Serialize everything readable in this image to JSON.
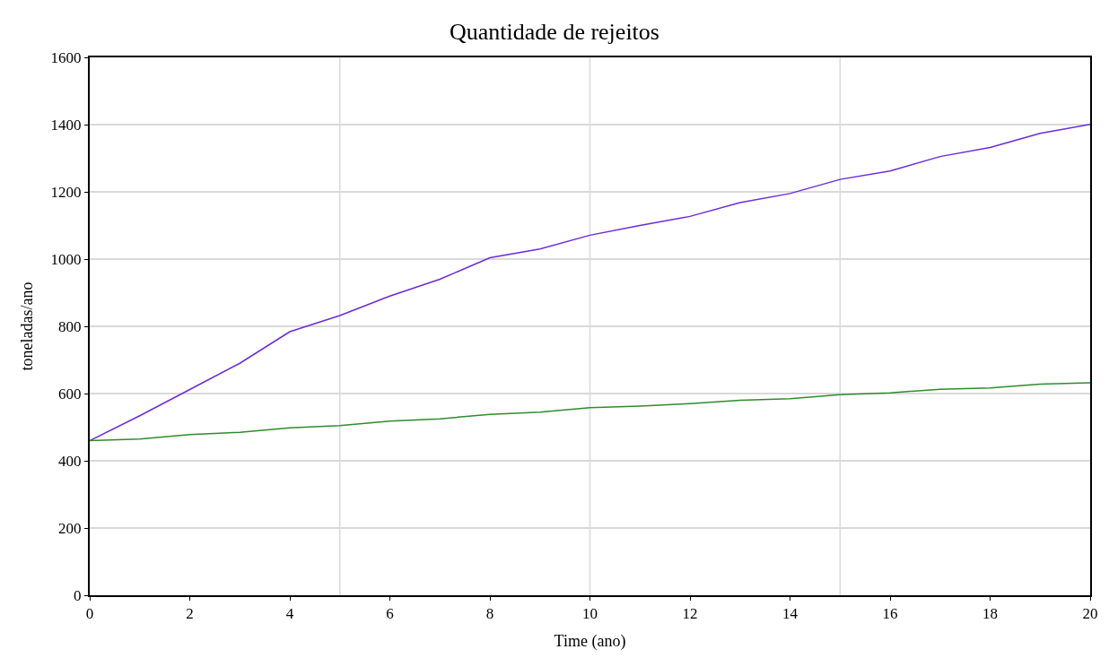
{
  "chart_data": {
    "type": "line",
    "title": "Quantidade de rejeitos",
    "xlabel": "Time (ano)",
    "ylabel": "toneladas/ano",
    "x": [
      0,
      1,
      2,
      3,
      4,
      5,
      6,
      7,
      8,
      9,
      10,
      11,
      12,
      13,
      14,
      15,
      16,
      17,
      18,
      19,
      20
    ],
    "series": [
      {
        "color": "#6a2be0",
        "values": [
          460,
          534,
          612,
          690,
          784,
          832,
          890,
          940,
          1004,
          1030,
          1071,
          1100,
          1127,
          1168,
          1195,
          1237,
          1262,
          1305,
          1332,
          1374,
          1401
        ]
      },
      {
        "color": "#2e8b2e",
        "values": [
          460,
          465,
          478,
          485,
          498,
          505,
          518,
          525,
          538,
          545,
          558,
          563,
          570,
          580,
          585,
          597,
          602,
          613,
          617,
          628,
          632
        ]
      }
    ],
    "xlim": [
      0,
      20
    ],
    "xticks": [
      0,
      2,
      4,
      6,
      8,
      10,
      12,
      14,
      16,
      18,
      20
    ],
    "ylim": [
      0,
      1600
    ],
    "yticks": [
      0,
      200,
      400,
      600,
      800,
      1000,
      1200,
      1400,
      1600
    ],
    "grid": "y",
    "marker": "none",
    "line_style": "solid",
    "ref_lines": [
      {
        "axis": "x",
        "value": 5,
        "color": "#d9d9d9"
      },
      {
        "axis": "x",
        "value": 10,
        "color": "#d9d9d9"
      },
      {
        "axis": "x",
        "value": 15,
        "color": "#d9d9d9"
      }
    ]
  }
}
